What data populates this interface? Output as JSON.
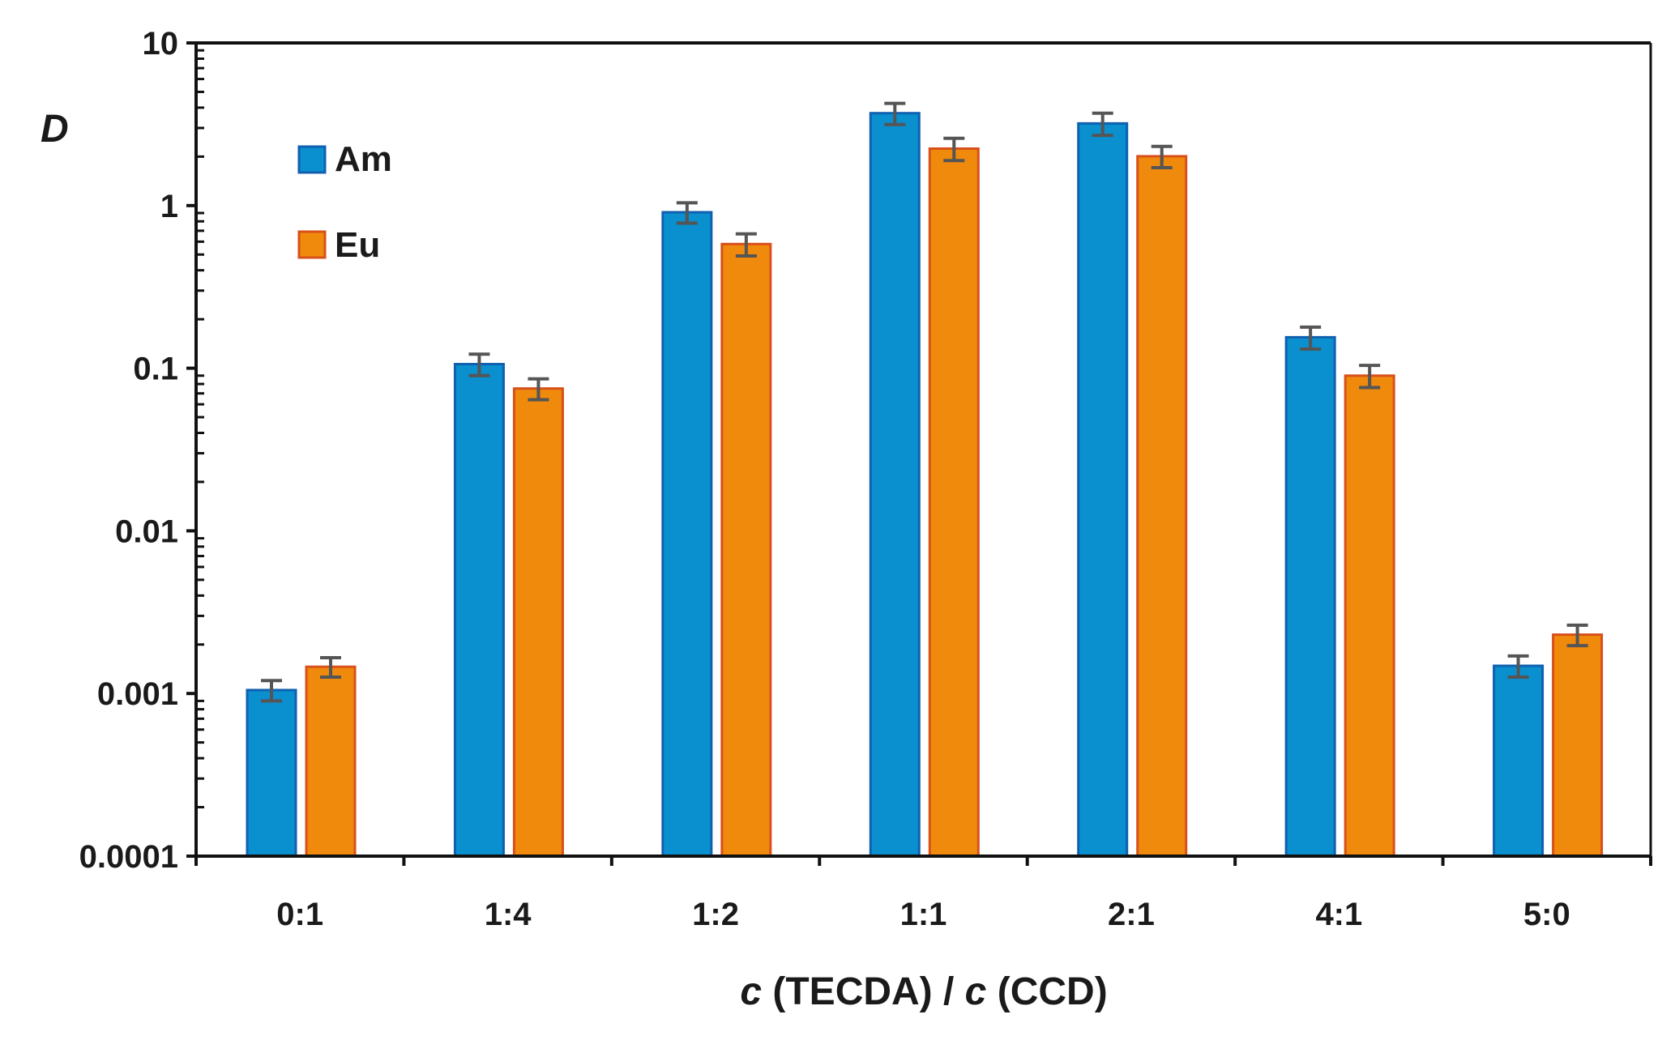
{
  "chart_data": {
    "type": "bar",
    "title": "",
    "xlabel_parts": [
      "c",
      " (TECDA) / ",
      "c",
      " (CCD)"
    ],
    "xlabel": "c (TECDA) / c (CCD)",
    "ylabel": "D",
    "yscale": "log",
    "ylim": [
      0.0001,
      10
    ],
    "yticks": [
      "10",
      "1",
      "0.1",
      "0.01",
      "0.001",
      "0.0001"
    ],
    "ytick_values": [
      10,
      1,
      0.1,
      0.01,
      0.001,
      0.0001
    ],
    "categories": [
      "0:1",
      "1:4",
      "1:2",
      "1:1",
      "2:1",
      "4:1",
      "5:0"
    ],
    "legend_position": "top-left",
    "series": [
      {
        "name": "Am",
        "color": "#0a8fcf",
        "edge": "#1060b0",
        "values": [
          0.00105,
          0.106,
          0.91,
          3.7,
          3.2,
          0.155,
          0.00148
        ],
        "errors": [
          0.00015,
          0.016,
          0.13,
          0.55,
          0.5,
          0.024,
          0.00022
        ]
      },
      {
        "name": "Eu",
        "color": "#f08a0c",
        "edge": "#d8501a",
        "values": [
          0.00146,
          0.075,
          0.58,
          2.24,
          2.01,
          0.09,
          0.0023
        ],
        "errors": [
          0.0002,
          0.011,
          0.09,
          0.35,
          0.3,
          0.014,
          0.00033
        ]
      }
    ]
  }
}
